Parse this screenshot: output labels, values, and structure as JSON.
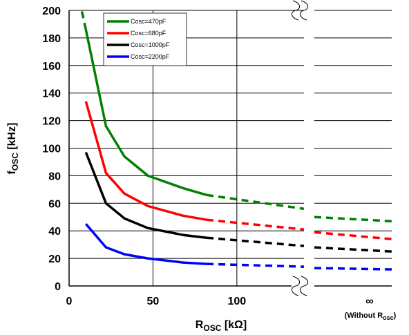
{
  "chart_data": {
    "type": "line",
    "xlabel": {
      "main": "R",
      "sub": "OSC",
      "unit": " [kΩ]"
    },
    "ylabel": {
      "main": "f",
      "sub": "OSC",
      "unit": " [kHz]"
    },
    "ylim": [
      0,
      200
    ],
    "yticks": [
      "0",
      "20",
      "40",
      "60",
      "80",
      "100",
      "120",
      "140",
      "160",
      "180",
      "200"
    ],
    "xlim": [
      0,
      140
    ],
    "xticks": [
      "0",
      "50",
      "100"
    ],
    "infinity_tick": "∞",
    "infinity_note": {
      "prefix": "(Without  R",
      "sub": "osc",
      "suffix": ")"
    },
    "x_axis_break": true,
    "grid": true,
    "legend_position": "top-left",
    "series": [
      {
        "name": "Cosc=470pF",
        "color": "#008000",
        "solid": [
          [
            10,
            186
          ],
          [
            22,
            116
          ],
          [
            33,
            94
          ],
          [
            47,
            80
          ],
          [
            68,
            71
          ],
          [
            82,
            66
          ]
        ],
        "dashed_head": [
          [
            10,
            186
          ],
          [
            7.5,
            200
          ]
        ],
        "dashed_tail": [
          [
            82,
            66
          ],
          [
            140,
            56
          ]
        ],
        "infinity_dashed": [
          50,
          47
        ]
      },
      {
        "name": "Cosc=680pF",
        "color": "#ff0000",
        "solid": [
          [
            10,
            134
          ],
          [
            22,
            82
          ],
          [
            33,
            67
          ],
          [
            47,
            58
          ],
          [
            68,
            51
          ],
          [
            82,
            48
          ]
        ],
        "dashed_tail": [
          [
            82,
            48
          ],
          [
            140,
            41
          ]
        ],
        "infinity_dashed": [
          39,
          34
        ]
      },
      {
        "name": "Cosc=1000pF",
        "color": "#000000",
        "solid": [
          [
            10,
            97
          ],
          [
            22,
            60
          ],
          [
            33,
            49
          ],
          [
            47,
            42
          ],
          [
            68,
            37
          ],
          [
            82,
            35
          ]
        ],
        "dashed_tail": [
          [
            82,
            35
          ],
          [
            140,
            29
          ]
        ],
        "infinity_dashed": [
          28,
          25
        ]
      },
      {
        "name": "Cosc=2200pF",
        "color": "#0000ff",
        "solid": [
          [
            10,
            45
          ],
          [
            22,
            28
          ],
          [
            33,
            23
          ],
          [
            47,
            20
          ],
          [
            68,
            17
          ],
          [
            82,
            16
          ]
        ],
        "dashed_tail": [
          [
            82,
            16
          ],
          [
            140,
            14
          ]
        ],
        "infinity_dashed": [
          13,
          12
        ]
      }
    ]
  }
}
